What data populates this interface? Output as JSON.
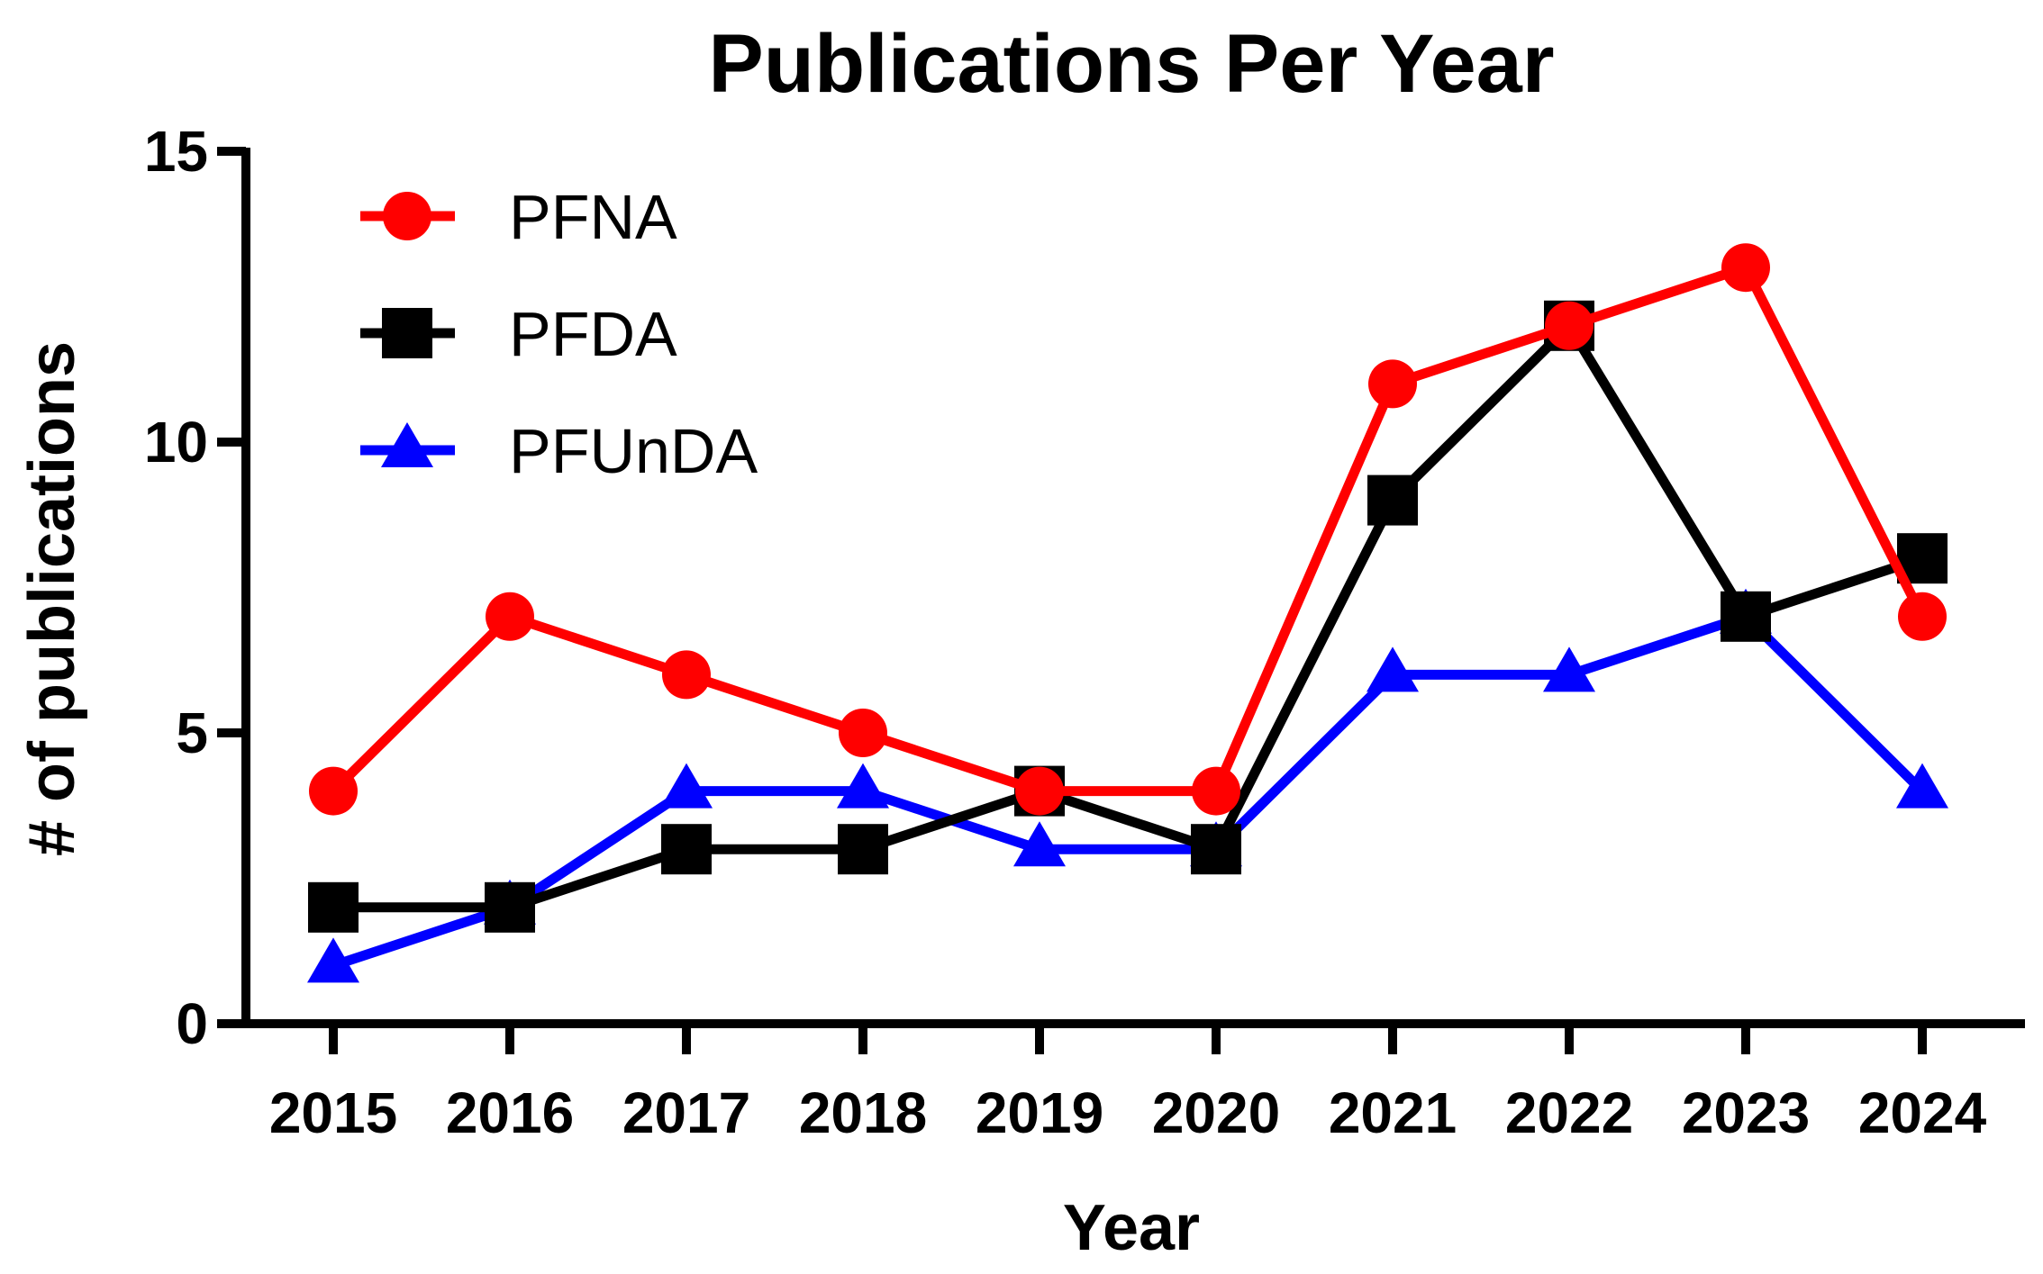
{
  "chart_data": {
    "type": "line",
    "title": "Publications Per Year",
    "xlabel": "Year",
    "ylabel": "# of publications",
    "categories": [
      "2015",
      "2016",
      "2017",
      "2018",
      "2019",
      "2020",
      "2021",
      "2022",
      "2023",
      "2024"
    ],
    "ylim": [
      0,
      15
    ],
    "yticks": [
      0,
      5,
      10,
      15
    ],
    "grid": false,
    "legend_position": "top-left",
    "series": [
      {
        "name": "PFNA",
        "color": "#ff0000",
        "marker": "circle",
        "values": [
          4,
          7,
          6,
          5,
          4,
          4,
          11,
          12,
          13,
          7
        ]
      },
      {
        "name": "PFDA",
        "color": "#000000",
        "marker": "square",
        "values": [
          2,
          2,
          3,
          3,
          4,
          3,
          9,
          12,
          7,
          8
        ]
      },
      {
        "name": "PFUnDA",
        "color": "#0000ff",
        "marker": "triangle",
        "values": [
          1,
          2,
          4,
          4,
          3,
          3,
          6,
          6,
          7,
          4
        ]
      }
    ]
  }
}
